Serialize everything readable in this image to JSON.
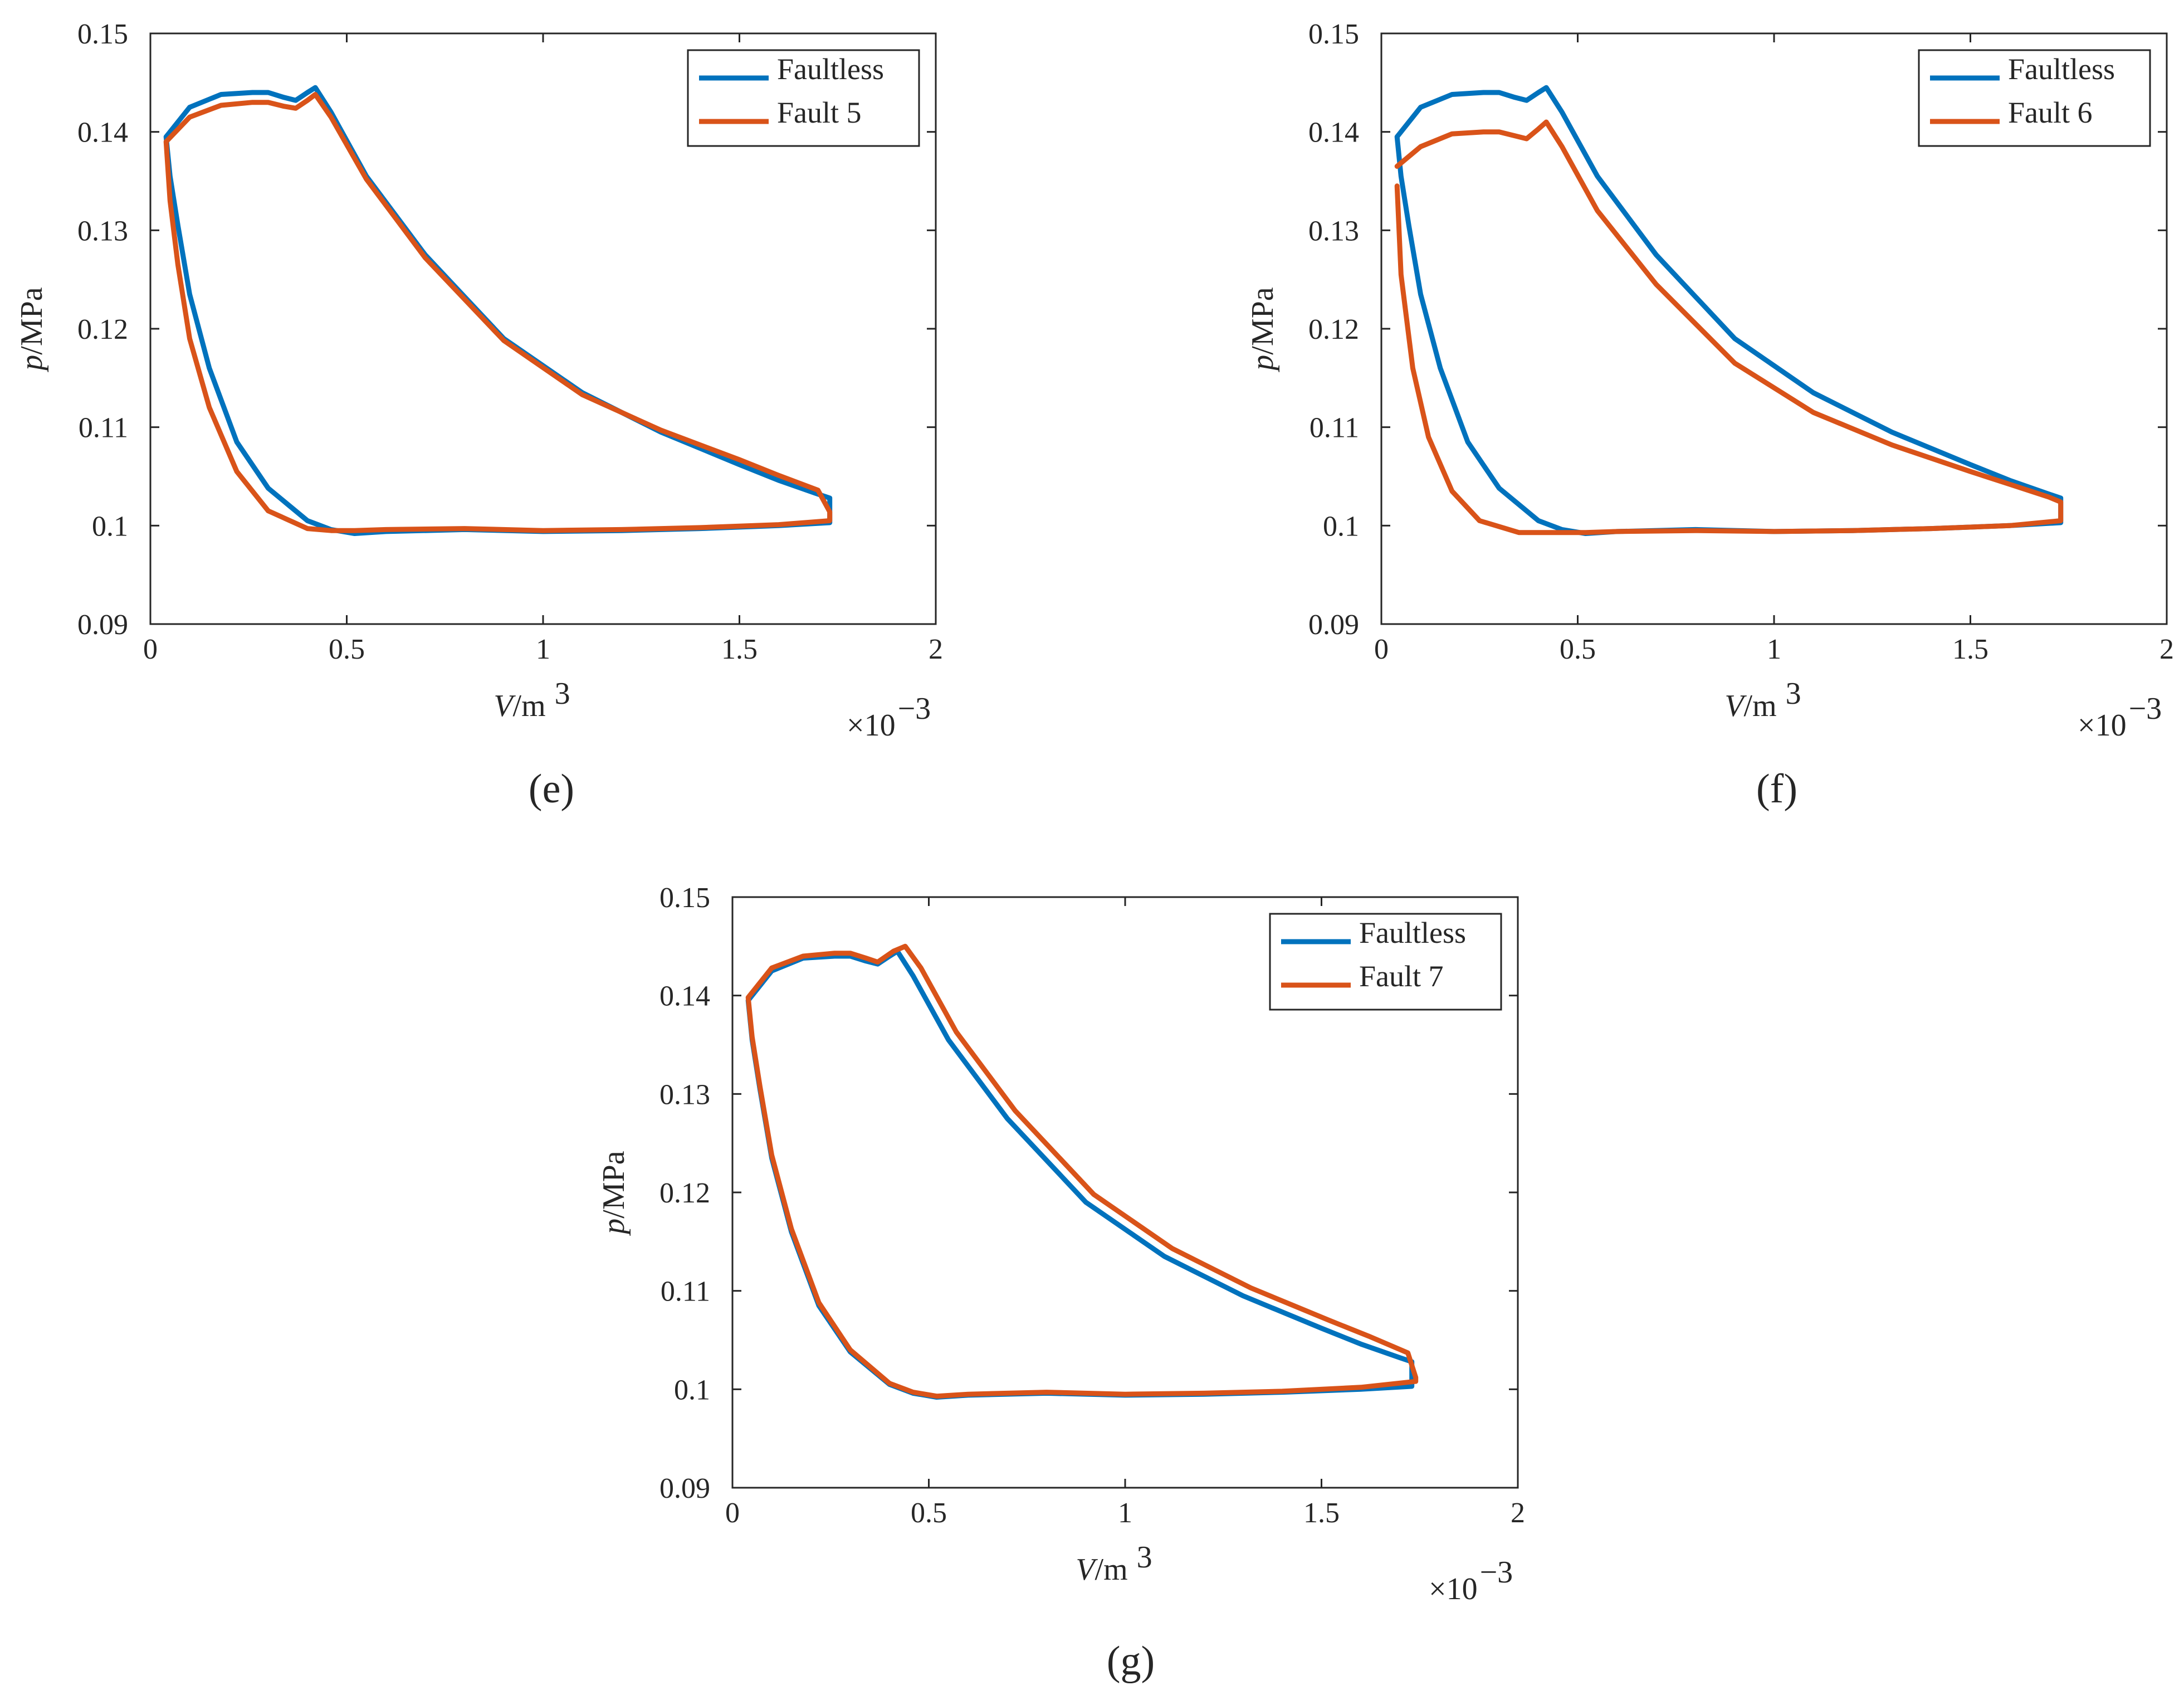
{
  "figure_labels": [
    "(e)",
    "(f)",
    "(g)"
  ],
  "colors": {
    "faultless": "#0072BD",
    "fault": "#D95319",
    "axis": "#262626"
  },
  "chart_data": [
    {
      "type": "line",
      "caption": "(e)",
      "xlabel_var": "V",
      "xlabel_unit": "/m",
      "xlabel_exp": "3",
      "ylabel_var": "p",
      "ylabel_unit": "/MPa",
      "x_multiplier": "×10",
      "x_multiplier_exp": "−3",
      "xlim": [
        0,
        2
      ],
      "ylim": [
        0.09,
        0.15
      ],
      "xticks": [
        "0",
        "0.5",
        "1",
        "1.5",
        "2"
      ],
      "yticks": [
        "0.09",
        "0.1",
        "0.11",
        "0.12",
        "0.13",
        "0.14",
        "0.15"
      ],
      "legend_position": "top-right",
      "series": [
        {
          "name": "Faultless",
          "x": [
            0.04,
            0.1,
            0.18,
            0.26,
            0.3,
            0.34,
            0.37,
            0.4,
            0.42,
            0.46,
            0.55,
            0.7,
            0.9,
            1.1,
            1.3,
            1.5,
            1.6,
            1.7,
            1.73,
            1.73,
            1.6,
            1.4,
            1.2,
            1.0,
            0.8,
            0.6,
            0.52,
            0.46,
            0.4,
            0.3,
            0.22,
            0.15,
            0.1,
            0.07,
            0.05,
            0.04
          ],
          "y": [
            0.1395,
            0.1425,
            0.1438,
            0.144,
            0.144,
            0.1435,
            0.1432,
            0.144,
            0.1445,
            0.142,
            0.1355,
            0.1275,
            0.119,
            0.1135,
            0.1095,
            0.1062,
            0.1046,
            0.1032,
            0.1028,
            0.1003,
            0.1,
            0.0997,
            0.0995,
            0.0994,
            0.0996,
            0.0994,
            0.0992,
            0.0996,
            0.1005,
            0.1038,
            0.1085,
            0.116,
            0.1235,
            0.1305,
            0.1355,
            0.1395
          ]
        },
        {
          "name": "Fault 5",
          "x": [
            0.04,
            0.1,
            0.18,
            0.26,
            0.3,
            0.34,
            0.37,
            0.4,
            0.42,
            0.46,
            0.55,
            0.7,
            0.9,
            1.1,
            1.3,
            1.5,
            1.6,
            1.7,
            1.73,
            1.73,
            1.6,
            1.4,
            1.2,
            1.0,
            0.8,
            0.6,
            0.52,
            0.46,
            0.4,
            0.3,
            0.22,
            0.15,
            0.1,
            0.07,
            0.05,
            0.04
          ],
          "y": [
            0.139,
            0.1415,
            0.1427,
            0.143,
            0.143,
            0.1426,
            0.1424,
            0.1432,
            0.1438,
            0.1415,
            0.1352,
            0.1272,
            0.1188,
            0.1133,
            0.1097,
            0.1067,
            0.1051,
            0.1036,
            0.1014,
            0.1005,
            0.1001,
            0.0998,
            0.0996,
            0.0995,
            0.0997,
            0.0996,
            0.0995,
            0.0995,
            0.0997,
            0.1015,
            0.1055,
            0.112,
            0.119,
            0.1265,
            0.133,
            0.139
          ]
        }
      ]
    },
    {
      "type": "line",
      "caption": "(f)",
      "xlabel_var": "V",
      "xlabel_unit": "/m",
      "xlabel_exp": "3",
      "ylabel_var": "p",
      "ylabel_unit": "/MPa",
      "x_multiplier": "×10",
      "x_multiplier_exp": "−3",
      "xlim": [
        0,
        2
      ],
      "ylim": [
        0.09,
        0.15
      ],
      "xticks": [
        "0",
        "0.5",
        "1",
        "1.5",
        "2"
      ],
      "yticks": [
        "0.09",
        "0.1",
        "0.11",
        "0.12",
        "0.13",
        "0.14",
        "0.15"
      ],
      "legend_position": "top-right",
      "series": [
        {
          "name": "Faultless",
          "x": [
            0.04,
            0.1,
            0.18,
            0.26,
            0.3,
            0.34,
            0.37,
            0.4,
            0.42,
            0.46,
            0.55,
            0.7,
            0.9,
            1.1,
            1.3,
            1.5,
            1.6,
            1.7,
            1.73,
            1.73,
            1.6,
            1.4,
            1.2,
            1.0,
            0.8,
            0.6,
            0.52,
            0.46,
            0.4,
            0.3,
            0.22,
            0.15,
            0.1,
            0.07,
            0.05,
            0.04
          ],
          "y": [
            0.1395,
            0.1425,
            0.1438,
            0.144,
            0.144,
            0.1435,
            0.1432,
            0.144,
            0.1445,
            0.142,
            0.1355,
            0.1275,
            0.119,
            0.1135,
            0.1095,
            0.1062,
            0.1046,
            0.1032,
            0.1028,
            0.1003,
            0.1,
            0.0997,
            0.0995,
            0.0994,
            0.0996,
            0.0994,
            0.0992,
            0.0996,
            0.1005,
            0.1038,
            0.1085,
            0.116,
            0.1235,
            0.1305,
            0.1355,
            0.1395
          ]
        },
        {
          "name": "Fault 6",
          "x": [
            0.04,
            0.1,
            0.18,
            0.26,
            0.3,
            0.34,
            0.37,
            0.4,
            0.42,
            0.46,
            0.55,
            0.7,
            0.9,
            1.1,
            1.3,
            1.5,
            1.6,
            1.7,
            1.73,
            1.73,
            1.6,
            1.4,
            1.2,
            1.0,
            0.8,
            0.6,
            0.52,
            0.46,
            0.4,
            0.35,
            0.25,
            0.18,
            0.12,
            0.08,
            0.05,
            0.04
          ],
          "y": [
            0.1365,
            0.1385,
            0.1398,
            0.14,
            0.14,
            0.1396,
            0.1393,
            0.1403,
            0.141,
            0.1385,
            0.132,
            0.1245,
            0.1165,
            0.1115,
            0.1082,
            0.1055,
            0.1042,
            0.1029,
            0.1024,
            0.1005,
            0.1,
            0.0997,
            0.0995,
            0.0994,
            0.0995,
            0.0994,
            0.0993,
            0.0993,
            0.0993,
            0.0993,
            0.1005,
            0.1035,
            0.109,
            0.116,
            0.1255,
            0.1345
          ]
        }
      ]
    },
    {
      "type": "line",
      "caption": "(g)",
      "xlabel_var": "V",
      "xlabel_unit": "/m",
      "xlabel_exp": "3",
      "ylabel_var": "p",
      "ylabel_unit": "/MPa",
      "x_multiplier": "×10",
      "x_multiplier_exp": "−3",
      "xlim": [
        0,
        2
      ],
      "ylim": [
        0.09,
        0.15
      ],
      "xticks": [
        "0",
        "0.5",
        "1",
        "1.5",
        "2"
      ],
      "yticks": [
        "0.09",
        "0.1",
        "0.11",
        "0.12",
        "0.13",
        "0.14",
        "0.15"
      ],
      "legend_position": "top-right",
      "series": [
        {
          "name": "Faultless",
          "x": [
            0.04,
            0.1,
            0.18,
            0.26,
            0.3,
            0.34,
            0.37,
            0.4,
            0.42,
            0.46,
            0.55,
            0.7,
            0.9,
            1.1,
            1.3,
            1.5,
            1.6,
            1.7,
            1.73,
            1.73,
            1.6,
            1.4,
            1.2,
            1.0,
            0.8,
            0.6,
            0.52,
            0.46,
            0.4,
            0.3,
            0.22,
            0.15,
            0.1,
            0.07,
            0.05,
            0.04
          ],
          "y": [
            0.1395,
            0.1425,
            0.1438,
            0.144,
            0.144,
            0.1435,
            0.1432,
            0.144,
            0.1445,
            0.142,
            0.1355,
            0.1275,
            0.119,
            0.1135,
            0.1095,
            0.1062,
            0.1046,
            0.1032,
            0.1028,
            0.1003,
            0.1,
            0.0997,
            0.0995,
            0.0994,
            0.0996,
            0.0994,
            0.0992,
            0.0996,
            0.1005,
            0.1038,
            0.1085,
            0.116,
            0.1235,
            0.1305,
            0.1355,
            0.1395
          ]
        },
        {
          "name": "Fault 7",
          "x": [
            0.04,
            0.1,
            0.18,
            0.26,
            0.3,
            0.34,
            0.37,
            0.41,
            0.44,
            0.48,
            0.57,
            0.72,
            0.92,
            1.12,
            1.32,
            1.52,
            1.62,
            1.72,
            1.74,
            1.74,
            1.6,
            1.4,
            1.2,
            1.0,
            0.8,
            0.6,
            0.52,
            0.46,
            0.4,
            0.3,
            0.22,
            0.15,
            0.1,
            0.07,
            0.05,
            0.04
          ],
          "y": [
            0.1398,
            0.1428,
            0.144,
            0.1443,
            0.1443,
            0.1438,
            0.1434,
            0.1445,
            0.145,
            0.1428,
            0.1363,
            0.1283,
            0.1198,
            0.1143,
            0.1103,
            0.107,
            0.1054,
            0.1037,
            0.1012,
            0.1008,
            0.1002,
            0.0998,
            0.0996,
            0.0995,
            0.0997,
            0.0995,
            0.0993,
            0.0997,
            0.1006,
            0.104,
            0.1088,
            0.1163,
            0.1238,
            0.1308,
            0.1358,
            0.1398
          ]
        }
      ]
    }
  ]
}
